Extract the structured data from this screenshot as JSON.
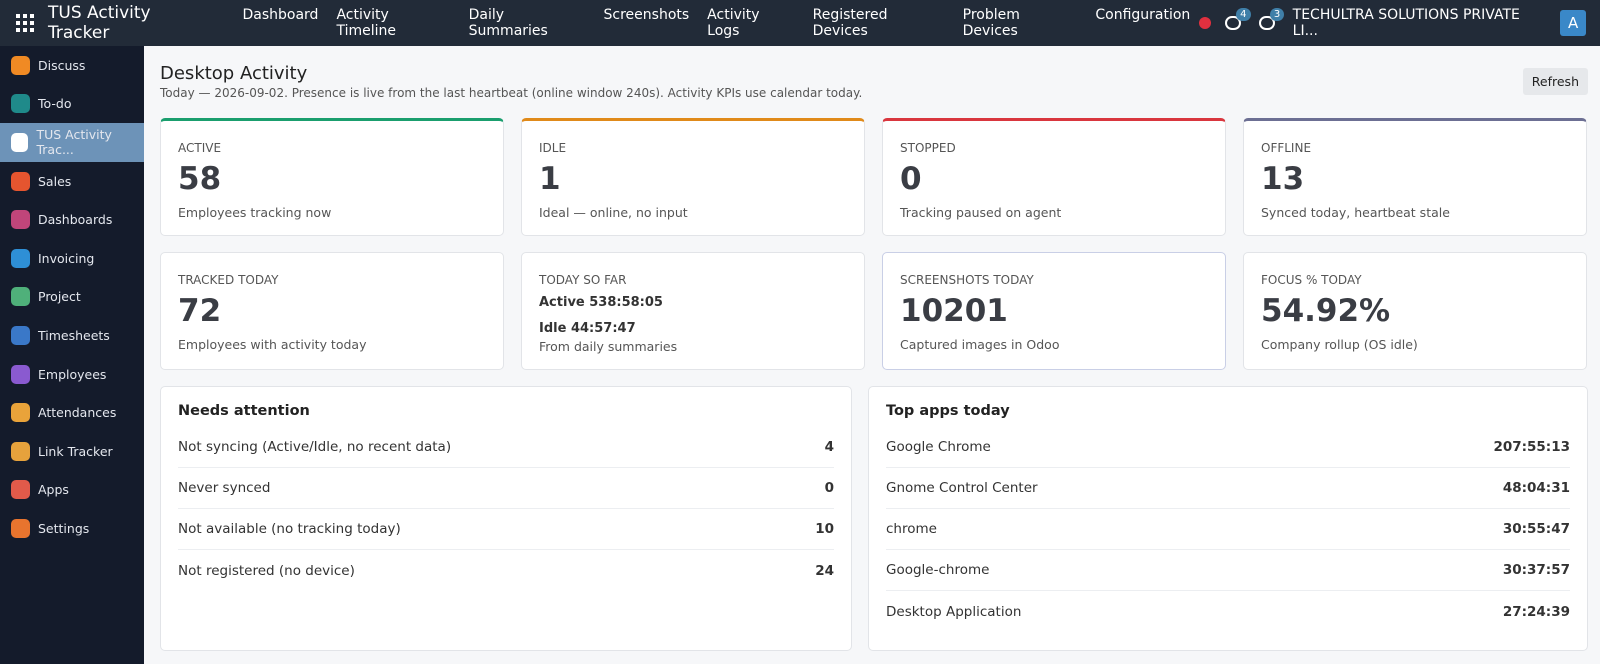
{
  "navbar": {
    "app_title": "TUS Activity Tracker",
    "menu": [
      "Dashboard",
      "Activity Timeline",
      "Daily Summaries",
      "Screenshots",
      "Activity Logs",
      "Registered Devices",
      "Problem Devices",
      "Configuration"
    ],
    "messages_badge": 4,
    "activities_badge": 3,
    "company": "TECHULTRA SOLUTIONS PRIVATE LI...",
    "avatar": "A"
  },
  "sidebar": {
    "items": [
      "Discuss",
      "To-do",
      "TUS Activity Trac...",
      "Sales",
      "Dashboards",
      "Invoicing",
      "Project",
      "Timesheets",
      "Employees",
      "Attendances",
      "Link Tracker",
      "Apps",
      "Settings"
    ]
  },
  "header": {
    "title": "Desktop Activity",
    "subtitle": "Today — 2026-09-02. Presence is live from the last heartbeat (online window 240s). Activity KPIs use calendar today.",
    "refresh": "Refresh"
  },
  "kpis": [
    {
      "label": "ACTIVE",
      "value": "58",
      "note": "Employees tracking now"
    },
    {
      "label": "IDLE",
      "value": "1",
      "note": "Ideal — online, no input"
    },
    {
      "label": "STOPPED",
      "value": "0",
      "note": "Tracking paused on agent"
    },
    {
      "label": "OFFLINE",
      "value": "13",
      "note": "Synced today, heartbeat stale"
    },
    {
      "label": "TRACKED TODAY",
      "value": "72",
      "note": "Employees with activity today"
    },
    {
      "label": "TODAY SO FAR",
      "lines": [
        "Active 538:58:05",
        "Idle 44:57:47"
      ],
      "note": "From daily summaries"
    },
    {
      "label": "SCREENSHOTS TODAY",
      "value": "10201",
      "note": "Captured images in Odoo"
    },
    {
      "label": "FOCUS % TODAY",
      "value": "54.92%",
      "note": "Company rollup (OS idle)"
    }
  ],
  "attention": {
    "title": "Needs attention",
    "rows": [
      [
        "Not syncing (Active/Idle, no recent data)",
        "4"
      ],
      [
        "Never synced",
        "0"
      ],
      [
        "Not available (no tracking today)",
        "10"
      ],
      [
        "Not registered (no device)",
        "24"
      ]
    ]
  },
  "top_apps": {
    "title": "Top apps today",
    "rows": [
      [
        "Google Chrome",
        "207:55:13"
      ],
      [
        "Gnome Control Center",
        "48:04:31"
      ],
      [
        "chrome",
        "30:55:47"
      ],
      [
        "Google-chrome",
        "30:37:57"
      ],
      [
        "Desktop Application",
        "27:24:39"
      ]
    ]
  }
}
